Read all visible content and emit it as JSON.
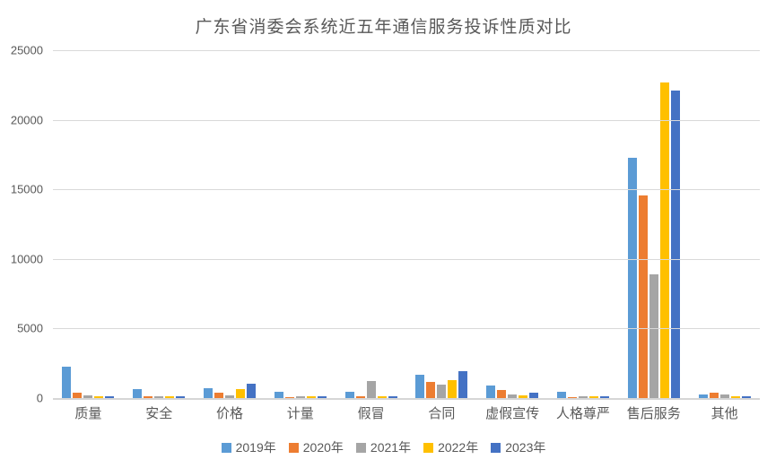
{
  "chart_data": {
    "type": "bar",
    "title": "广东省消委会系统近五年通信服务投诉性质对比",
    "categories": [
      "质量",
      "安全",
      "价格",
      "计量",
      "假冒",
      "合同",
      "虚假宣传",
      "人格尊严",
      "售后服务",
      "其他"
    ],
    "series": [
      {
        "name": "2019年",
        "color": "#5B9BD5",
        "values": [
          2250,
          620,
          700,
          470,
          470,
          1680,
          890,
          480,
          17250,
          240
        ]
      },
      {
        "name": "2020年",
        "color": "#ED7D31",
        "values": [
          400,
          130,
          410,
          60,
          130,
          1160,
          580,
          70,
          14550,
          370
        ]
      },
      {
        "name": "2021年",
        "color": "#A5A5A5",
        "values": [
          200,
          110,
          200,
          100,
          1230,
          970,
          280,
          100,
          8900,
          240
        ]
      },
      {
        "name": "2022年",
        "color": "#FFC000",
        "values": [
          100,
          150,
          670,
          130,
          130,
          1290,
          200,
          100,
          22650,
          100
        ]
      },
      {
        "name": "2023年",
        "color": "#4472C4",
        "values": [
          150,
          150,
          1050,
          130,
          100,
          1940,
          370,
          130,
          22100,
          130
        ]
      }
    ],
    "ylim": [
      0,
      25000
    ],
    "yticks": [
      0,
      5000,
      10000,
      15000,
      20000,
      25000
    ],
    "grid": true,
    "legend_position": "bottom"
  },
  "colors": {
    "text": "#595959",
    "gridline": "#D9D9D9",
    "axis_line": "#D6D6D6",
    "background": "#FFFFFF"
  }
}
